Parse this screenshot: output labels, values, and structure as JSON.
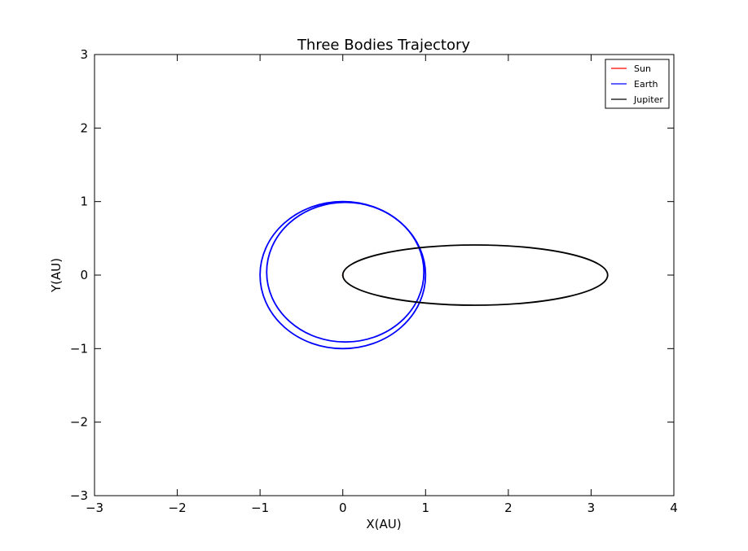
{
  "chart_data": {
    "type": "line",
    "title": "Three Bodies Trajectory",
    "xlabel": "X(AU)",
    "ylabel": "Y(AU)",
    "xlim": [
      -3,
      4
    ],
    "ylim": [
      -3,
      3
    ],
    "xticks": [
      -3,
      -2,
      -1,
      0,
      1,
      2,
      3,
      4
    ],
    "yticks": [
      -3,
      -2,
      -1,
      0,
      1,
      2,
      3
    ],
    "grid": false,
    "legend_position": "top-right",
    "series": [
      {
        "name": "Sun",
        "color": "#ff0000",
        "orbits": [
          {
            "cx": 0.0,
            "cy": 0.0,
            "rx": 0.006,
            "ry": 0.006
          }
        ]
      },
      {
        "name": "Earth",
        "color": "#0000ff",
        "orbits": [
          {
            "cx": 0.0,
            "cy": 0.0,
            "rx": 1.0,
            "ry": 1.0
          },
          {
            "cx": 0.03,
            "cy": 0.04,
            "rx": 0.95,
            "ry": 0.95
          }
        ]
      },
      {
        "name": "Jupiter",
        "color": "#000000",
        "orbits": [
          {
            "cx": 1.6,
            "cy": 0.0,
            "rx": 1.6,
            "ry": 0.41
          }
        ]
      }
    ]
  }
}
